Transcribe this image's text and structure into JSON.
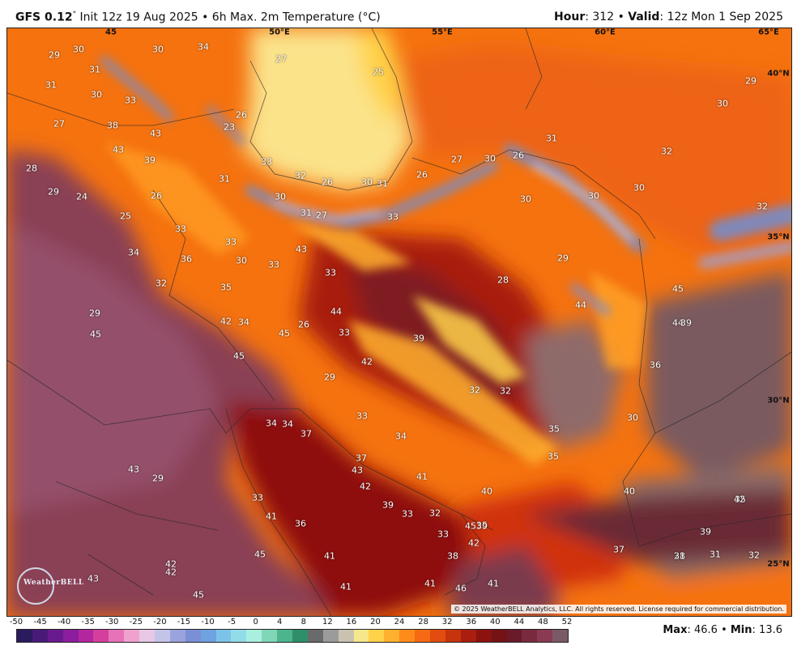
{
  "header": {
    "model_label": "GFS 0.12",
    "degree_mark": "°",
    "init_text": " Init 12z 19 Aug 2025 • 6h Max. 2m Temperature (°C)",
    "hour_label": "Hour",
    "hour_value": ": 312 • ",
    "valid_label": "Valid",
    "valid_value": ": 12z Mon 1 Sep 2025"
  },
  "map": {
    "coordinate_labels": [
      "50°E",
      "55°E",
      "60°E",
      "65°E",
      "40°N",
      "35°N",
      "30°N",
      "25°N",
      "45"
    ],
    "temperature_labels": [
      "29",
      "30",
      "30",
      "34",
      "31",
      "27",
      "33",
      "25",
      "31",
      "29",
      "30",
      "30",
      "26",
      "23",
      "27",
      "38",
      "43",
      "43",
      "39",
      "31",
      "32",
      "28",
      "29",
      "24",
      "25",
      "26",
      "31",
      "33",
      "32",
      "26",
      "30",
      "31",
      "26",
      "27",
      "26",
      "30",
      "30",
      "30",
      "30",
      "31",
      "27",
      "33",
      "30",
      "32",
      "33",
      "33",
      "30",
      "43",
      "33",
      "34",
      "36",
      "32",
      "33",
      "35",
      "28",
      "29",
      "26",
      "44",
      "45",
      "44",
      "42",
      "45",
      "34",
      "29",
      "33",
      "39",
      "44",
      "45",
      "45",
      "39",
      "42",
      "29",
      "32",
      "32",
      "35",
      "36",
      "30",
      "37",
      "34",
      "33",
      "34",
      "34",
      "37",
      "29",
      "43",
      "43",
      "41",
      "40",
      "42",
      "40",
      "39",
      "33",
      "32",
      "36",
      "35",
      "33",
      "41",
      "45",
      "35",
      "39",
      "42",
      "33",
      "42",
      "45",
      "41",
      "41",
      "42",
      "42",
      "43",
      "45",
      "38",
      "41",
      "46",
      "41",
      "39",
      "37",
      "28",
      "31",
      "31",
      "32",
      "35"
    ],
    "copyright": "© 2025 WeatherBELL Analytics, LLC. All rights reserved. License required for commercial distribution.",
    "logo_text": "WeatherBELL"
  },
  "colorbar": {
    "ticks": [
      "-50",
      "-45",
      "-40",
      "-35",
      "-30",
      "-25",
      "-20",
      "-15",
      "-10",
      "-5",
      "0",
      "4",
      "8",
      "12",
      "16",
      "20",
      "24",
      "28",
      "32",
      "36",
      "40",
      "44",
      "48",
      "52"
    ],
    "colors": [
      "#2a1a5e",
      "#4a1a7a",
      "#6a1a8f",
      "#8c1d9e",
      "#b3269e",
      "#d43f9e",
      "#e872b8",
      "#f0a2cf",
      "#e9c7e6",
      "#c4c4e8",
      "#9aa3de",
      "#7a8fd6",
      "#6ea2e0",
      "#7cc3ea",
      "#92dbe8",
      "#a9efe0",
      "#7fd7b8",
      "#4cb58e",
      "#2e8f6a",
      "#6a6a6a",
      "#9b9b9b",
      "#c9c2b0",
      "#f6e78a",
      "#ffd24a",
      "#ffb02e",
      "#ff8c1a",
      "#f56a12",
      "#e24d0f",
      "#c7330c",
      "#a91e0e",
      "#8c120f",
      "#741216",
      "#6a1a2a",
      "#7a2a3e",
      "#8a3a52",
      "#7a5a66"
    ]
  },
  "stats": {
    "max_label": "Max",
    "max_value": ": 46.6 • ",
    "min_label": "Min",
    "min_value": ": 13.6"
  }
}
